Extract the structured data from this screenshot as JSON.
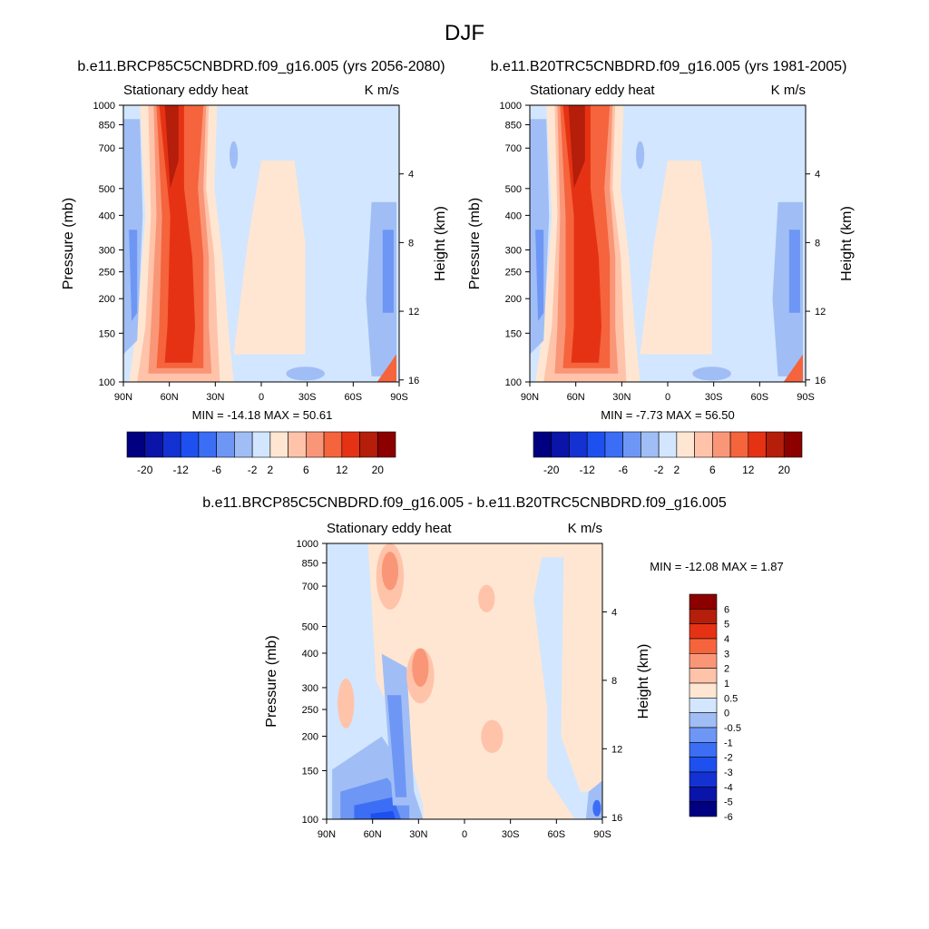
{
  "main_title": "DJF",
  "panels": [
    {
      "id": "future",
      "case_title": "b.e11.BRCP85C5CNBDRD.f09_g16.005 (yrs 2056-2080)",
      "left_string": "Stationary eddy heat",
      "right_string": "K m/s",
      "ylabel": "Pressure (mb)",
      "ylabel_right": "Height (km)",
      "minmax": "MIN = -14.18  MAX =  50.61",
      "pressure_ticks": [
        "100",
        "150",
        "200",
        "250",
        "300",
        "400",
        "500",
        "700",
        "850",
        "1000"
      ],
      "height_ticks": [
        "4",
        "8",
        "12",
        "16"
      ],
      "lat_ticks": [
        "90N",
        "60N",
        "30N",
        "0",
        "30S",
        "60S",
        "90S"
      ],
      "colorbar_labels": [
        "-20",
        "-12",
        "-6",
        "-2",
        "2",
        "6",
        "12",
        "20"
      ]
    },
    {
      "id": "present",
      "case_title": "b.e11.B20TRC5CNBDRD.f09_g16.005 (yrs 1981-2005)",
      "left_string": "Stationary eddy heat",
      "right_string": "K m/s",
      "ylabel": "Pressure (mb)",
      "ylabel_right": "Height (km)",
      "minmax": "MIN =  -7.73  MAX =  56.50",
      "pressure_ticks": [
        "100",
        "150",
        "200",
        "250",
        "300",
        "400",
        "500",
        "700",
        "850",
        "1000"
      ],
      "height_ticks": [
        "4",
        "8",
        "12",
        "16"
      ],
      "lat_ticks": [
        "90N",
        "60N",
        "30N",
        "0",
        "30S",
        "60S",
        "90S"
      ],
      "colorbar_labels": [
        "-20",
        "-12",
        "-6",
        "-2",
        "2",
        "6",
        "12",
        "20"
      ]
    },
    {
      "id": "difference",
      "case_title": "b.e11.BRCP85C5CNBDRD.f09_g16.005 - b.e11.B20TRC5CNBDRD.f09_g16.005",
      "left_string": "Stationary eddy heat",
      "right_string": "K m/s",
      "ylabel": "Pressure (mb)",
      "ylabel_right": "Height (km)",
      "minmax": "MIN = -12.08  MAX =   1.87",
      "pressure_ticks": [
        "100",
        "150",
        "200",
        "250",
        "300",
        "400",
        "500",
        "700",
        "850",
        "1000"
      ],
      "height_ticks": [
        "4",
        "8",
        "12",
        "16"
      ],
      "lat_ticks": [
        "90N",
        "60N",
        "30N",
        "0",
        "30S",
        "60S",
        "90S"
      ],
      "colorbar_labels": [
        "6",
        "5",
        "4",
        "3",
        "2",
        "1",
        "0.5",
        "0",
        "-0.5",
        "-1",
        "-2",
        "-3",
        "-4",
        "-5",
        "-6"
      ]
    }
  ],
  "chart_data": [
    {
      "type": "heatmap",
      "title": "b.e11.BRCP85C5CNBDRD.f09_g16.005 (yrs 2056-2080)",
      "variable": "Stationary eddy heat",
      "units": "K m/s",
      "xlabel": "",
      "ylabel": "Pressure (mb)",
      "y2label": "Height (km)",
      "xlim": [
        90,
        -90
      ],
      "ylim_mb": [
        1000,
        100
      ],
      "min": -14.18,
      "max": 50.61,
      "levels": [
        -20,
        -16,
        -12,
        -8,
        -6,
        -4,
        -2,
        0,
        2,
        4,
        6,
        8,
        12,
        16,
        20
      ],
      "features": [
        {
          "name": "NH midlatitude positive maximum",
          "lat_center": 49,
          "value_approx": 24
        },
        {
          "name": "NH polar negative band",
          "lat_center": 78,
          "value_approx": -4
        },
        {
          "name": "SH surface positive",
          "lat_center": -85,
          "value_approx": 16
        }
      ]
    },
    {
      "type": "heatmap",
      "title": "b.e11.B20TRC5CNBDRD.f09_g16.005 (yrs 1981-2005)",
      "variable": "Stationary eddy heat",
      "units": "K m/s",
      "xlabel": "",
      "ylabel": "Pressure (mb)",
      "y2label": "Height (km)",
      "xlim": [
        90,
        -90
      ],
      "ylim_mb": [
        1000,
        100
      ],
      "min": -7.73,
      "max": 56.5,
      "levels": [
        -20,
        -16,
        -12,
        -8,
        -6,
        -4,
        -2,
        0,
        2,
        4,
        6,
        8,
        12,
        16,
        20
      ],
      "features": [
        {
          "name": "NH midlatitude positive maximum",
          "lat_center": 51,
          "value_approx": 28
        },
        {
          "name": "NH polar negative band",
          "lat_center": 79,
          "value_approx": -4
        },
        {
          "name": "SH surface positive",
          "lat_center": -86,
          "value_approx": 18
        }
      ]
    },
    {
      "type": "heatmap",
      "title": "b.e11.BRCP85C5CNBDRD.f09_g16.005 - b.e11.B20TRC5CNBDRD.f09_g16.005",
      "variable": "Stationary eddy heat",
      "units": "K m/s",
      "xlabel": "",
      "ylabel": "Pressure (mb)",
      "y2label": "Height (km)",
      "xlim": [
        90,
        -90
      ],
      "ylim_mb": [
        1000,
        100
      ],
      "min": -12.08,
      "max": 1.87,
      "levels": [
        -6,
        -5,
        -4,
        -3,
        -2,
        -1,
        -0.5,
        0,
        0.5,
        1,
        2,
        3,
        4,
        5,
        6
      ],
      "features": [
        {
          "name": "NH lower-troposphere negative",
          "lat_center": 60,
          "value_approx": -5
        },
        {
          "name": "NH upper positive",
          "lat_center": 58,
          "value_approx": 2
        },
        {
          "name": "NH mid positive",
          "lat_center": 40,
          "value_approx": 2
        }
      ]
    }
  ],
  "colors": {
    "full_scale": [
      "#000080",
      "#0a14a8",
      "#1432d2",
      "#1e50f0",
      "#3c6ef5",
      "#6e96f5",
      "#a0bef5",
      "#d2e6ff",
      "#ffe6d2",
      "#ffc3aa",
      "#fa9678",
      "#f5643c",
      "#e63214",
      "#b41e0a",
      "#8c0000"
    ],
    "diff_scale": [
      "#000080",
      "#0a14a8",
      "#1432d2",
      "#1e50f0",
      "#3c6ef5",
      "#6e96f5",
      "#a0bef5",
      "#d2e6ff",
      "#ffe6d2",
      "#ffc3aa",
      "#fa9678",
      "#f5643c",
      "#e63214",
      "#b41e0a",
      "#8c0000"
    ]
  }
}
